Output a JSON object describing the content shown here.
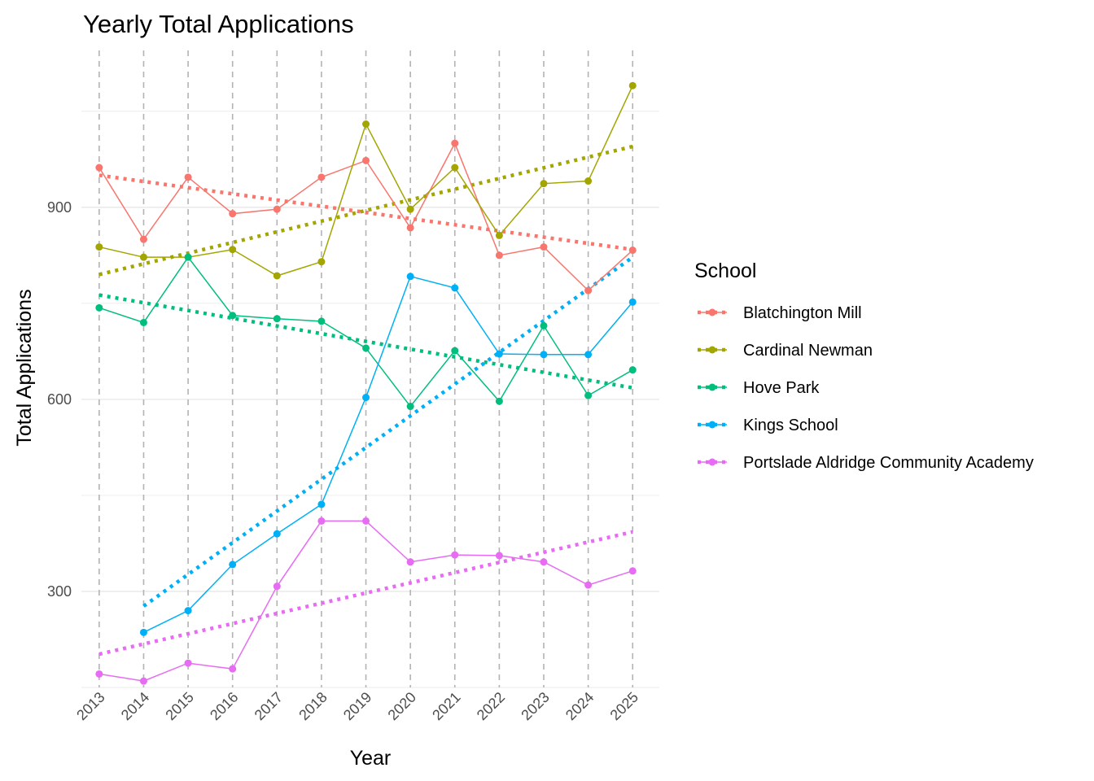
{
  "chart_data": {
    "type": "line",
    "title": "Yearly Total Applications",
    "xlabel": "Year",
    "ylabel": "Total Applications",
    "x": [
      2013,
      2014,
      2015,
      2016,
      2017,
      2018,
      2019,
      2020,
      2021,
      2022,
      2023,
      2024,
      2025
    ],
    "xlim": [
      2012.6,
      2025.6
    ],
    "ylim": [
      150,
      1145
    ],
    "yticks": [
      300,
      600,
      900
    ],
    "grid": true,
    "legend": {
      "title": "School",
      "position": "right"
    },
    "series": [
      {
        "name": "Blatchington Mill",
        "color": "#F8766D",
        "values": [
          962,
          850,
          947,
          890,
          897,
          947,
          973,
          868,
          1000,
          825,
          838,
          770,
          833
        ],
        "trend": [
          950,
          834
        ]
      },
      {
        "name": "Cardinal Newman",
        "color": "#A3A500",
        "values": [
          838,
          822,
          822,
          834,
          793,
          815,
          1030,
          897,
          962,
          856,
          937,
          941,
          1090
        ],
        "trend": [
          795,
          995
        ]
      },
      {
        "name": "Hove Park",
        "color": "#00BF7D",
        "values": [
          743,
          720,
          822,
          731,
          726,
          722,
          680,
          589,
          676,
          597,
          715,
          606,
          646
        ],
        "trend": [
          763,
          618
        ]
      },
      {
        "name": "Kings School",
        "color": "#00B0F6",
        "values": [
          null,
          236,
          270,
          342,
          390,
          436,
          603,
          792,
          774,
          671,
          670,
          670,
          752
        ],
        "trend": [
          277,
          822
        ]
      },
      {
        "name": "Portslade Aldridge Community Academy",
        "color": "#E76BF3",
        "values": [
          171,
          160,
          188,
          179,
          308,
          410,
          410,
          346,
          357,
          356,
          346,
          310,
          332
        ],
        "trend": [
          202,
          393
        ]
      }
    ]
  }
}
